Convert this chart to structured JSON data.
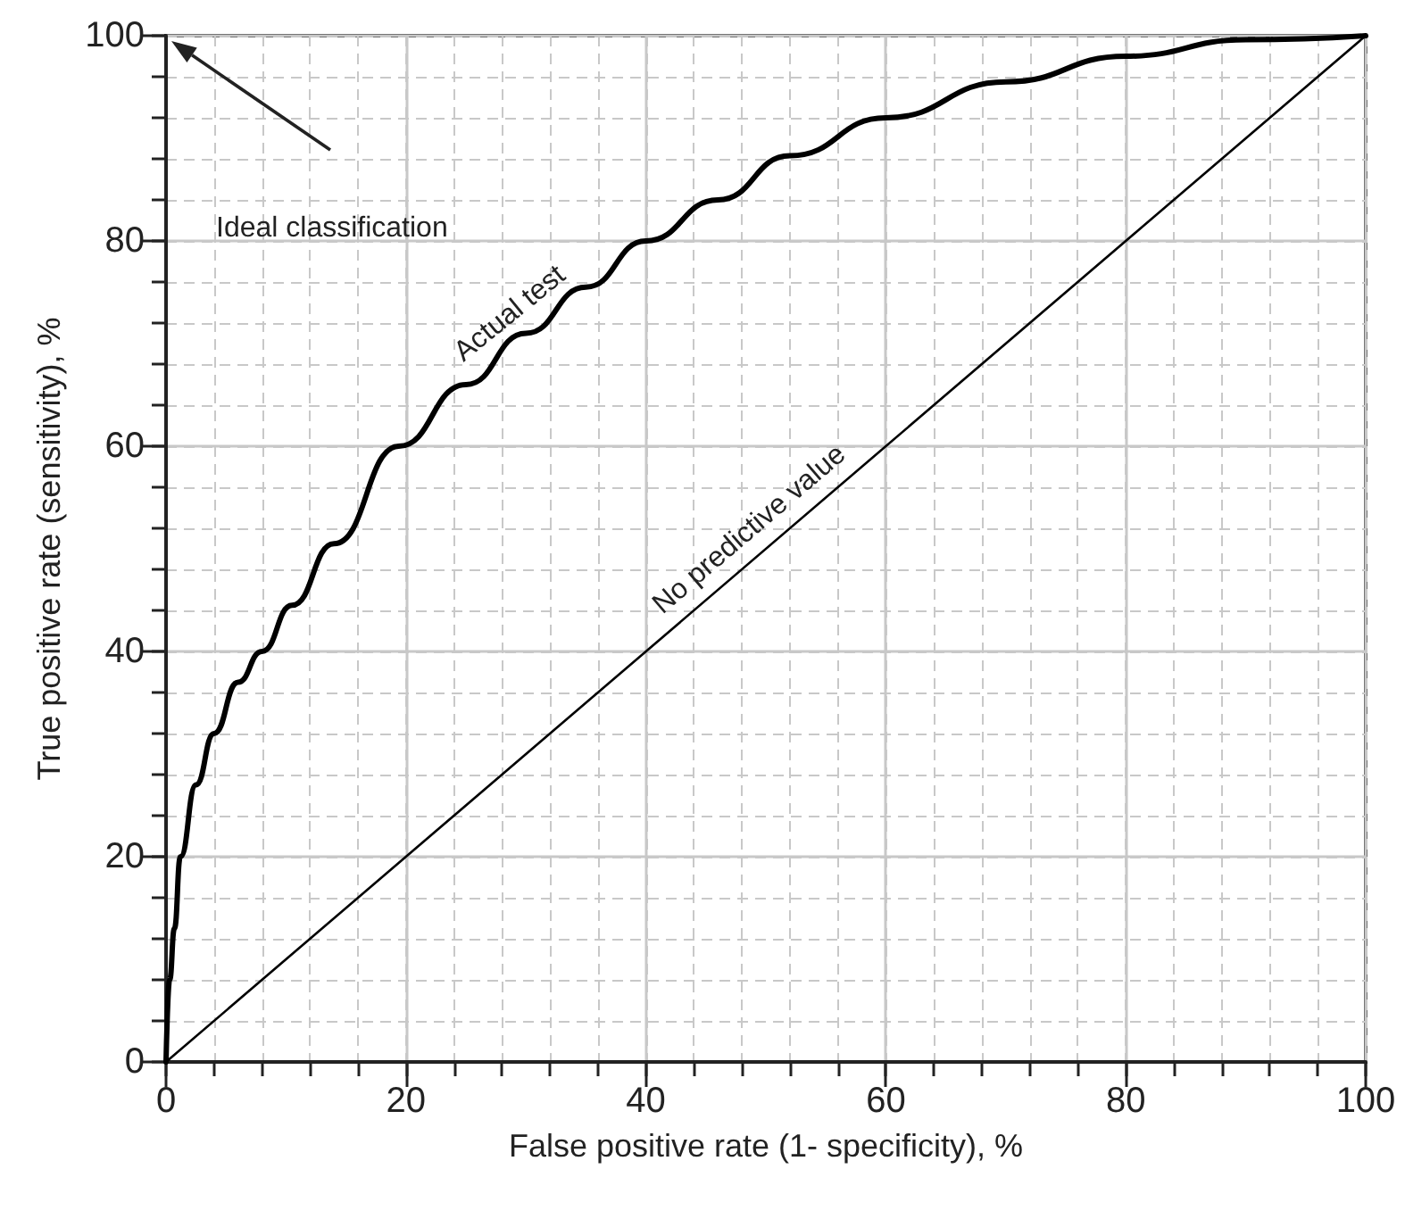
{
  "chart_data": {
    "type": "line",
    "xlabel": "False positive rate (1- specificity), %",
    "ylabel": "True positive rate (sensitivity), %",
    "xlim": [
      0,
      100
    ],
    "ylim": [
      0,
      100
    ],
    "xticks": [
      0,
      {
        "value": 4,
        "label": null
      },
      {
        "value": 8,
        "label": null
      },
      {
        "value": 12,
        "label": null
      },
      {
        "value": 16,
        "label": null
      },
      20,
      {
        "value": 24,
        "label": null
      },
      {
        "value": 28,
        "label": null
      },
      {
        "value": 32,
        "label": null
      },
      {
        "value": 36,
        "label": null
      },
      40,
      {
        "value": 44,
        "label": null
      },
      {
        "value": 48,
        "label": null
      },
      {
        "value": 52,
        "label": null
      },
      {
        "value": 56,
        "label": null
      },
      60,
      {
        "value": 64,
        "label": null
      },
      {
        "value": 68,
        "label": null
      },
      {
        "value": 72,
        "label": null
      },
      {
        "value": 76,
        "label": null
      },
      80,
      {
        "value": 84,
        "label": null
      },
      {
        "value": 88,
        "label": null
      },
      {
        "value": 92,
        "label": null
      },
      {
        "value": 96,
        "label": null
      },
      100
    ],
    "yticks": [
      0,
      {
        "value": 4,
        "label": null
      },
      {
        "value": 8,
        "label": null
      },
      {
        "value": 12,
        "label": null
      },
      {
        "value": 16,
        "label": null
      },
      20,
      {
        "value": 24,
        "label": null
      },
      {
        "value": 28,
        "label": null
      },
      {
        "value": 32,
        "label": null
      },
      {
        "value": 36,
        "label": null
      },
      40,
      {
        "value": 44,
        "label": null
      },
      {
        "value": 48,
        "label": null
      },
      {
        "value": 52,
        "label": null
      },
      {
        "value": 56,
        "label": null
      },
      60,
      {
        "value": 64,
        "label": null
      },
      {
        "value": 68,
        "label": null
      },
      {
        "value": 72,
        "label": null
      },
      {
        "value": 76,
        "label": null
      },
      80,
      {
        "value": 84,
        "label": null
      },
      {
        "value": 88,
        "label": null
      },
      {
        "value": 92,
        "label": null
      },
      {
        "value": 96,
        "label": null
      },
      100
    ],
    "grid": true,
    "marker": "none",
    "line_style": "solid",
    "series": [
      {
        "name": "Actual test",
        "color": "#000000",
        "x": [
          0,
          0.3,
          0.7,
          1.2,
          2.5,
          4,
          6,
          8,
          10.5,
          14,
          19.4,
          25,
          30,
          35,
          40,
          46,
          52,
          60,
          70,
          80,
          90,
          100
        ],
        "values": [
          0,
          8,
          13,
          20,
          27,
          32,
          37,
          40,
          44.5,
          50.5,
          60,
          66,
          71,
          75.5,
          80,
          84,
          88.3,
          92,
          95.5,
          98,
          99.6,
          100
        ]
      },
      {
        "name": "No predictive value",
        "color": "#000000",
        "x": [
          0,
          100
        ],
        "values": [
          0,
          100
        ]
      }
    ],
    "annotations": [
      "Ideal classification"
    ]
  }
}
